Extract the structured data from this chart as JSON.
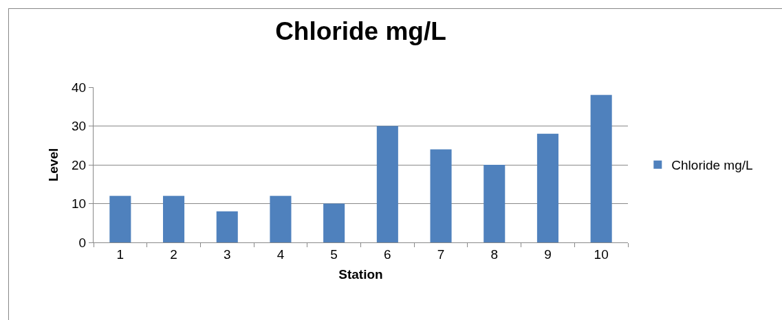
{
  "chart_data": {
    "type": "bar",
    "title": "Chloride mg/L",
    "xlabel": "Station",
    "ylabel": "Level",
    "categories": [
      "1",
      "2",
      "3",
      "4",
      "5",
      "6",
      "7",
      "8",
      "9",
      "10"
    ],
    "series": [
      {
        "name": "Chloride mg/L",
        "color": "#4f81bd",
        "values": [
          12,
          12,
          8,
          12,
          10,
          30,
          24,
          20,
          28,
          38
        ]
      }
    ],
    "ylim": [
      0,
      40
    ],
    "yticks": [
      0,
      10,
      20,
      30,
      40
    ],
    "grid": "y",
    "legend": "right"
  }
}
